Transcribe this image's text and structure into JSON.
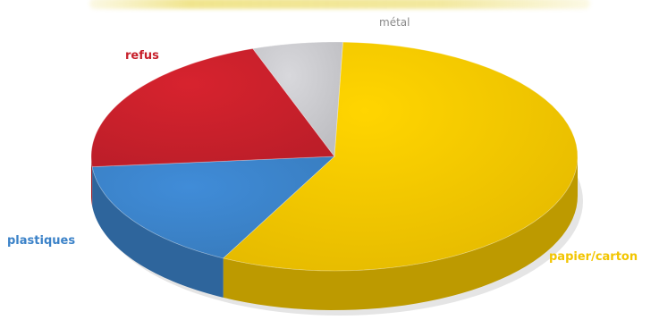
{
  "chart_data": {
    "type": "pie",
    "title": "",
    "series": [
      {
        "values": [
          57,
          16,
          21,
          6
        ]
      }
    ],
    "categories": [
      "papier/carton",
      "plastiques",
      "refus",
      "métal"
    ],
    "colors": [
      "#f2c500",
      "#3b82c8",
      "#c7202b",
      "#c8c8cc"
    ],
    "label_colors": [
      "#f2c500",
      "#3b82c8",
      "#c7202b",
      "#8a8a8a"
    ],
    "style": "3d",
    "start_angle_deg": -88
  }
}
